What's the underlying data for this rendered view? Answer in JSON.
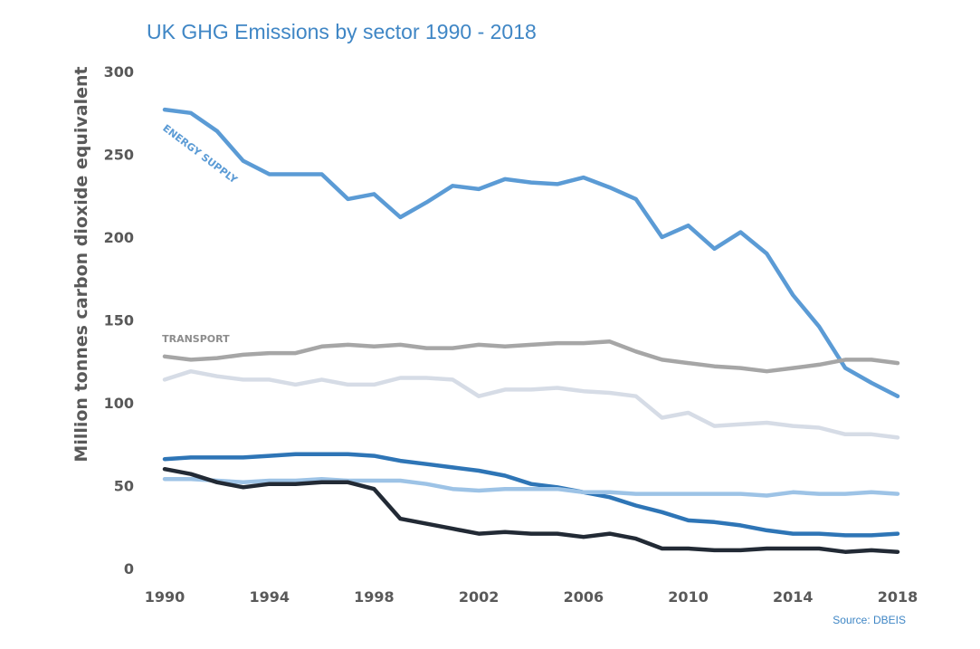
{
  "chart_data": {
    "type": "line",
    "title": "UK GHG Emissions by sector 1990 - 2018",
    "ylabel": "Million tonnes carbon dioxide equivalent",
    "xlabel": "",
    "source": "Source: DBEIS",
    "ylim": [
      0,
      300
    ],
    "xlim": [
      1990,
      2018
    ],
    "yticks": [
      "0",
      "50",
      "100",
      "150",
      "200",
      "250",
      "300"
    ],
    "xticks": [
      "1990",
      "1994",
      "1998",
      "2002",
      "2006",
      "2010",
      "2014",
      "2018"
    ],
    "grid": false,
    "legend": "none",
    "annotations": [
      {
        "text": "ENERGY SUPPLY",
        "series": 0
      },
      {
        "text": "TRANSPORT",
        "series": 1
      }
    ],
    "x": [
      1990,
      1991,
      1992,
      1993,
      1994,
      1995,
      1996,
      1997,
      1998,
      1999,
      2000,
      2001,
      2002,
      2003,
      2004,
      2005,
      2006,
      2007,
      2008,
      2009,
      2010,
      2011,
      2012,
      2013,
      2014,
      2015,
      2016,
      2017,
      2018
    ],
    "series": [
      {
        "name": "ENERGY SUPPLY",
        "color": "#5b9bd5",
        "values": [
          277,
          275,
          264,
          246,
          238,
          238,
          238,
          223,
          226,
          212,
          221,
          231,
          229,
          235,
          233,
          232,
          236,
          230,
          223,
          200,
          207,
          193,
          203,
          190,
          165,
          146,
          121,
          112,
          104
        ]
      },
      {
        "name": "TRANSPORT",
        "color": "#a6a6a6",
        "values": [
          128,
          126,
          127,
          129,
          130,
          130,
          134,
          135,
          134,
          135,
          133,
          133,
          135,
          134,
          135,
          136,
          136,
          137,
          131,
          126,
          124,
          122,
          121,
          119,
          121,
          123,
          126,
          126,
          124
        ]
      },
      {
        "color": "#d6dce6",
        "values": [
          114,
          119,
          116,
          114,
          114,
          111,
          114,
          111,
          111,
          115,
          115,
          114,
          104,
          108,
          108,
          109,
          107,
          106,
          104,
          91,
          94,
          86,
          87,
          88,
          86,
          85,
          81,
          81,
          79
        ]
      },
      {
        "color": "#2e75b6",
        "values": [
          66,
          67,
          67,
          67,
          68,
          69,
          69,
          69,
          68,
          65,
          63,
          61,
          59,
          56,
          51,
          49,
          46,
          43,
          38,
          34,
          29,
          28,
          26,
          23,
          21,
          21,
          20,
          20,
          21
        ]
      },
      {
        "color": "#9dc3e6",
        "values": [
          54,
          54,
          53,
          52,
          53,
          53,
          54,
          53,
          53,
          53,
          51,
          48,
          47,
          48,
          48,
          48,
          46,
          46,
          45,
          45,
          45,
          45,
          45,
          44,
          46,
          45,
          45,
          46,
          45
        ]
      },
      {
        "color": "#222a35",
        "values": [
          60,
          57,
          52,
          49,
          51,
          51,
          52,
          52,
          48,
          30,
          27,
          24,
          21,
          22,
          21,
          21,
          19,
          21,
          18,
          12,
          12,
          11,
          11,
          12,
          12,
          12,
          10,
          11,
          10
        ]
      }
    ]
  }
}
